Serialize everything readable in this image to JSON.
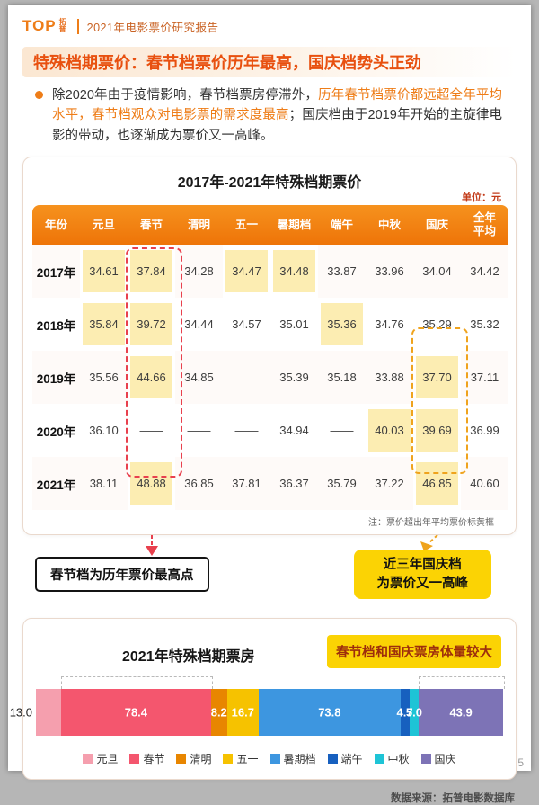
{
  "brand": {
    "logo": "TOP",
    "logo_cn": "拓普",
    "report_title": "2021年电影票价研究报告"
  },
  "heading": "特殊档期票价：春节档票价历年最高，国庆档势头正劲",
  "intro": {
    "segments": [
      {
        "text": "除2020年由于疫情影响，春节档票房停滞外，",
        "emphasis": false
      },
      {
        "text": "历年春节档票价都远超全年平均水平，春节档观众对电影票的需求度最高",
        "emphasis": true
      },
      {
        "text": "；国庆档由于2019年开始的主旋律电影的带动，也逐渐成为票价又一高峰。",
        "emphasis": false
      }
    ]
  },
  "price_table": {
    "title": "2017年-2021年特殊档期票价",
    "unit": "单位：元",
    "note": "注：票价超出年平均票价标黄框",
    "headers": [
      "年份",
      "元旦",
      "春节",
      "清明",
      "五一",
      "暑期档",
      "端午",
      "中秋",
      "国庆",
      "全年平均"
    ],
    "rows": [
      {
        "year": "2017年",
        "cells": [
          {
            "v": "34.61",
            "hl": true
          },
          {
            "v": "37.84",
            "hl": true
          },
          {
            "v": "34.28",
            "hl": false
          },
          {
            "v": "34.47",
            "hl": true
          },
          {
            "v": "34.48",
            "hl": true
          },
          {
            "v": "33.87",
            "hl": false
          },
          {
            "v": "33.96",
            "hl": false
          },
          {
            "v": "34.04",
            "hl": false
          },
          {
            "v": "34.42",
            "hl": false
          }
        ]
      },
      {
        "year": "2018年",
        "cells": [
          {
            "v": "35.84",
            "hl": true
          },
          {
            "v": "39.72",
            "hl": true
          },
          {
            "v": "34.44",
            "hl": false
          },
          {
            "v": "34.57",
            "hl": false
          },
          {
            "v": "35.01",
            "hl": false
          },
          {
            "v": "35.36",
            "hl": true
          },
          {
            "v": "34.76",
            "hl": false
          },
          {
            "v": "35.29",
            "hl": false
          },
          {
            "v": "35.32",
            "hl": false
          }
        ]
      },
      {
        "year": "2019年",
        "cells": [
          {
            "v": "35.56",
            "hl": false
          },
          {
            "v": "44.66",
            "hl": true
          },
          {
            "v": "34.85",
            "hl": false
          },
          {
            "v": "",
            "hl": false
          },
          {
            "v": "35.39",
            "hl": false
          },
          {
            "v": "35.18",
            "hl": false
          },
          {
            "v": "33.88",
            "hl": false
          },
          {
            "v": "37.70",
            "hl": true
          },
          {
            "v": "37.11",
            "hl": false
          }
        ]
      },
      {
        "year": "2020年",
        "cells": [
          {
            "v": "36.10",
            "hl": false
          },
          {
            "v": "——",
            "hl": false
          },
          {
            "v": "——",
            "hl": false
          },
          {
            "v": "——",
            "hl": false
          },
          {
            "v": "34.94",
            "hl": false
          },
          {
            "v": "——",
            "hl": false
          },
          {
            "v": "40.03",
            "hl": true
          },
          {
            "v": "39.69",
            "hl": true
          },
          {
            "v": "36.99",
            "hl": false
          }
        ]
      },
      {
        "year": "2021年",
        "cells": [
          {
            "v": "38.11",
            "hl": false
          },
          {
            "v": "48.88",
            "hl": true
          },
          {
            "v": "36.85",
            "hl": false
          },
          {
            "v": "37.81",
            "hl": false
          },
          {
            "v": "36.37",
            "hl": false
          },
          {
            "v": "35.79",
            "hl": false
          },
          {
            "v": "37.22",
            "hl": false
          },
          {
            "v": "46.85",
            "hl": true
          },
          {
            "v": "40.60",
            "hl": false
          }
        ]
      }
    ]
  },
  "annotations": {
    "spring_label": "春节档为历年票价最高点",
    "national_label_line1": "近三年国庆档",
    "national_label_line2": "为票价又一高峰"
  },
  "boxoffice_chart": {
    "title": "2021年特殊档期票房",
    "callout": "春节档和国庆票房体量较大",
    "segments": [
      {
        "name": "元旦",
        "value": 13.0,
        "label": "13.0",
        "color": "#f59fae"
      },
      {
        "name": "春节",
        "value": 78.4,
        "label": "78.4",
        "color": "#f4566e"
      },
      {
        "name": "清明",
        "value": 8.2,
        "label": "8.2",
        "color": "#e88600"
      },
      {
        "name": "五一",
        "value": 16.7,
        "label": "16.7",
        "color": "#f6c200"
      },
      {
        "name": "暑期档",
        "value": 73.8,
        "label": "73.8",
        "color": "#3d96e0"
      },
      {
        "name": "端午",
        "value": 4.7,
        "label": "4.7",
        "color": "#1760bf"
      },
      {
        "name": "中秋",
        "value": 5.0,
        "label": "5.0",
        "color": "#1ec4d6"
      },
      {
        "name": "国庆",
        "value": 43.9,
        "label": "43.9",
        "color": "#7d73b6"
      }
    ]
  },
  "footer": {
    "source": "数据来源：拓普电影数据库",
    "page_number": "5"
  },
  "accent_colors": {
    "brand_orange": "#ee7d18",
    "highlight_yellow": "#fcedb2",
    "red_dash": "#e8404d",
    "orange_dash": "#efa31d",
    "callout_yellow": "#fbd304",
    "header_orange": "#ee7408"
  },
  "chart_data": [
    {
      "type": "table",
      "title": "2017年-2021年特殊档期票价",
      "unit": "元",
      "columns": [
        "年份",
        "元旦",
        "春节",
        "清明",
        "五一",
        "暑期档",
        "端午",
        "中秋",
        "国庆",
        "全年平均"
      ],
      "rows": [
        [
          "2017年",
          "34.61",
          "37.84",
          "34.28",
          "34.47",
          "34.48",
          "33.87",
          "33.96",
          "34.04",
          "34.42"
        ],
        [
          "2018年",
          "35.84",
          "39.72",
          "34.44",
          "34.57",
          "35.01",
          "35.36",
          "34.76",
          "35.29",
          "35.32"
        ],
        [
          "2019年",
          "35.56",
          "44.66",
          "34.85",
          "",
          "35.39",
          "35.18",
          "33.88",
          "37.70",
          "37.11"
        ],
        [
          "2020年",
          "36.10",
          "——",
          "——",
          "——",
          "34.94",
          "——",
          "40.03",
          "39.69",
          "36.99"
        ],
        [
          "2021年",
          "38.11",
          "48.88",
          "36.85",
          "37.81",
          "36.37",
          "35.79",
          "37.22",
          "46.85",
          "40.60"
        ]
      ],
      "note": "票价超出年平均票价标黄框"
    },
    {
      "type": "bar",
      "variant": "horizontal-stacked",
      "title": "2021年特殊档期票房",
      "categories": [
        "元旦",
        "春节",
        "清明",
        "五一",
        "暑期档",
        "端午",
        "中秋",
        "国庆"
      ],
      "values": [
        13.0,
        78.4,
        8.2,
        16.7,
        73.8,
        4.7,
        5.0,
        43.9
      ],
      "colors": [
        "#f59fae",
        "#f4566e",
        "#e88600",
        "#f6c200",
        "#3d96e0",
        "#1760bf",
        "#1ec4d6",
        "#7d73b6"
      ],
      "legend_position": "bottom",
      "annotation": "春节档和国庆票房体量较大"
    }
  ]
}
